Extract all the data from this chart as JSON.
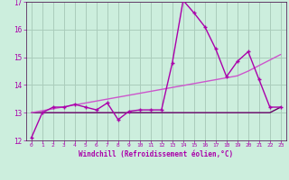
{
  "x": [
    0,
    1,
    2,
    3,
    4,
    5,
    6,
    7,
    8,
    9,
    10,
    11,
    12,
    13,
    14,
    15,
    16,
    17,
    18,
    19,
    20,
    21,
    22,
    23
  ],
  "y_main": [
    12.1,
    13.0,
    13.2,
    13.2,
    13.3,
    13.2,
    13.1,
    13.35,
    12.75,
    13.05,
    13.1,
    13.1,
    13.1,
    14.8,
    17.05,
    16.6,
    16.1,
    15.3,
    14.3,
    14.85,
    15.2,
    14.2,
    13.2,
    13.2
  ],
  "y_trend_flat": [
    13.0,
    13.0,
    13.0,
    13.0,
    13.0,
    13.0,
    13.0,
    13.0,
    13.0,
    13.0,
    13.0,
    13.0,
    13.0,
    13.0,
    13.0,
    13.0,
    13.0,
    13.0,
    13.0,
    13.0,
    13.0,
    13.0,
    13.0,
    13.2
  ],
  "y_trend_rise": [
    13.0,
    13.07,
    13.14,
    13.21,
    13.28,
    13.35,
    13.42,
    13.49,
    13.56,
    13.63,
    13.7,
    13.77,
    13.84,
    13.91,
    13.98,
    14.05,
    14.12,
    14.19,
    14.26,
    14.33,
    14.5,
    14.7,
    14.9,
    15.1
  ],
  "color_main": "#aa00aa",
  "color_flat": "#660066",
  "color_rise": "#cc55cc",
  "bg_color": "#cceedd",
  "grid_color": "#aaccbb",
  "axis_color": "#440044",
  "xlabel": "Windchill (Refroidissement éolien,°C)",
  "xlim": [
    -0.5,
    23.5
  ],
  "ylim": [
    12,
    17
  ],
  "yticks": [
    12,
    13,
    14,
    15,
    16,
    17
  ],
  "xticks": [
    0,
    1,
    2,
    3,
    4,
    5,
    6,
    7,
    8,
    9,
    10,
    11,
    12,
    13,
    14,
    15,
    16,
    17,
    18,
    19,
    20,
    21,
    22,
    23
  ]
}
